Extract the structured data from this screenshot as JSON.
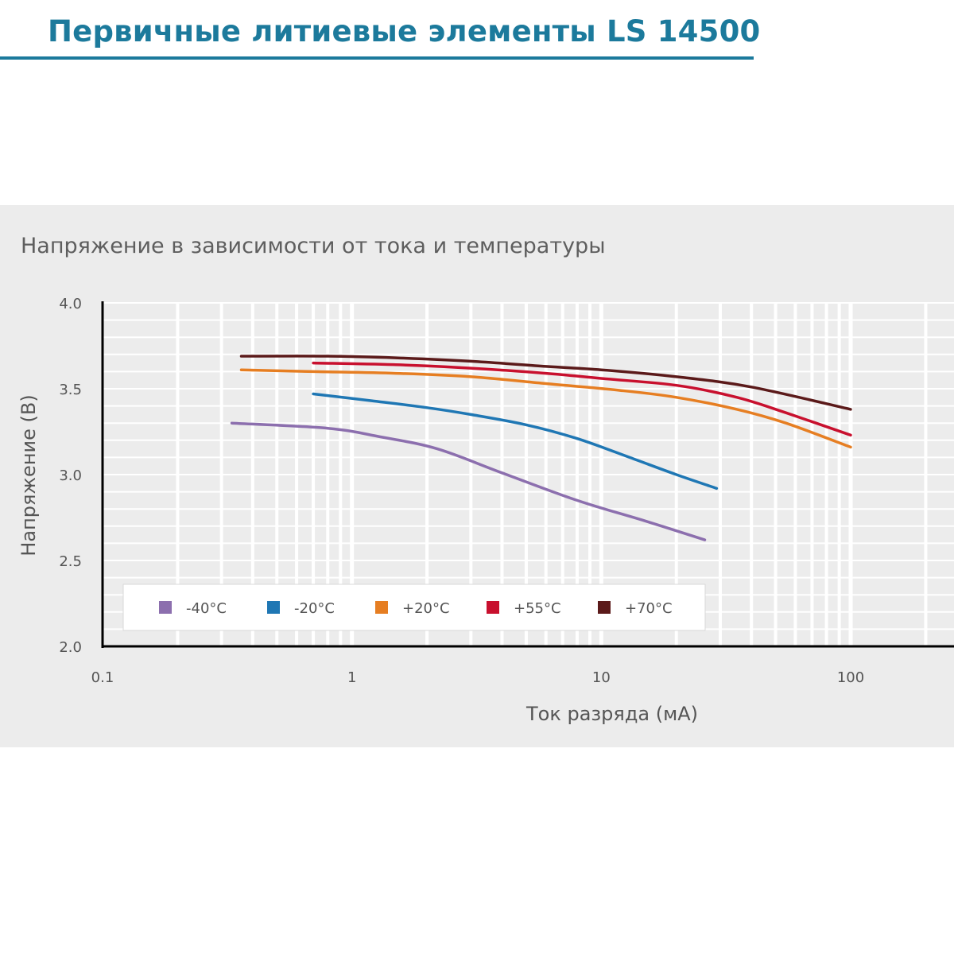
{
  "header": {
    "title": "Первичные литиевые элементы LS 14500",
    "accent_color": "#1c7a9c"
  },
  "chart_data": {
    "type": "line",
    "title": "Напряжение в зависимости от тока и температуры",
    "xlabel": "Ток разряда (мА)",
    "ylabel": "Напряжение (В)",
    "x_scale": "log",
    "xlim": [
      0.1,
      100
    ],
    "ylim": [
      2.0,
      4.0
    ],
    "x_ticks": [
      "0.1",
      "1",
      "10",
      "100"
    ],
    "y_ticks": [
      "2.0",
      "2.5",
      "3.0",
      "3.5",
      "4.0"
    ],
    "grid": true,
    "legend_position": "bottom-left",
    "series": [
      {
        "name": "-40°C",
        "color": "#8c6fae",
        "x": [
          0.33,
          0.8,
          1.3,
          2.2,
          4,
          8,
          15,
          26
        ],
        "y": [
          3.3,
          3.27,
          3.22,
          3.15,
          3.01,
          2.85,
          2.73,
          2.62
        ]
      },
      {
        "name": "-20°C",
        "color": "#1f77b4",
        "x": [
          0.7,
          1.2,
          2,
          3,
          5,
          8,
          13,
          20,
          29
        ],
        "y": [
          3.47,
          3.43,
          3.39,
          3.35,
          3.29,
          3.21,
          3.1,
          3.0,
          2.92
        ]
      },
      {
        "name": "+20°C",
        "color": "#e67e22",
        "x": [
          0.36,
          0.7,
          1.5,
          3,
          6,
          12,
          20,
          35,
          55,
          100
        ],
        "y": [
          3.61,
          3.6,
          3.59,
          3.57,
          3.53,
          3.49,
          3.45,
          3.38,
          3.3,
          3.16
        ]
      },
      {
        "name": "+55°C",
        "color": "#c8102e",
        "x": [
          0.7,
          1.5,
          3,
          6,
          10,
          20,
          35,
          55,
          100
        ],
        "y": [
          3.65,
          3.64,
          3.62,
          3.59,
          3.56,
          3.52,
          3.45,
          3.36,
          3.23
        ]
      },
      {
        "name": "+70°C",
        "color": "#5b1a1a",
        "x": [
          0.36,
          0.8,
          1.5,
          3,
          6,
          10,
          20,
          40,
          100
        ],
        "y": [
          3.69,
          3.69,
          3.68,
          3.66,
          3.63,
          3.61,
          3.57,
          3.51,
          3.38
        ]
      }
    ]
  }
}
